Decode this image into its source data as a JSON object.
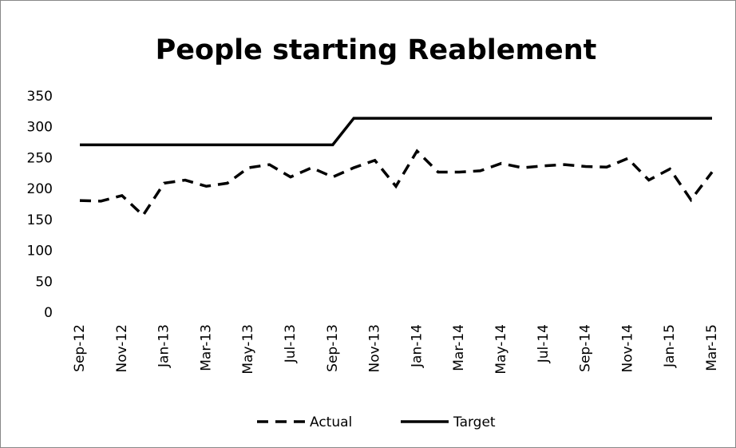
{
  "chart_data": {
    "type": "line",
    "title": "People starting Reablement",
    "categories": [
      "Sep-12",
      null,
      "Nov-12",
      null,
      "Jan-13",
      null,
      "Mar-13",
      null,
      "May-13",
      null,
      "Jul-13",
      null,
      "Sep-13",
      null,
      "Nov-13",
      null,
      "Jan-14",
      null,
      "Mar-14",
      null,
      "May-14",
      null,
      "Jul-14",
      null,
      "Sep-14",
      null,
      "Nov-14",
      null,
      "Jan-15",
      null,
      "Mar-15"
    ],
    "series": [
      {
        "name": "Actual",
        "color": "#000000",
        "dash": true,
        "values": [
          182,
          181,
          190,
          158,
          210,
          215,
          205,
          210,
          235,
          240,
          220,
          235,
          220,
          235,
          247,
          205,
          262,
          228,
          228,
          230,
          242,
          235,
          238,
          240,
          237,
          236,
          250,
          215,
          233,
          183,
          228
        ]
      },
      {
        "name": "Target",
        "color": "#000000",
        "dash": false,
        "values": [
          272,
          272,
          272,
          272,
          272,
          272,
          272,
          272,
          272,
          272,
          272,
          272,
          272,
          315,
          315,
          315,
          315,
          315,
          315,
          315,
          315,
          315,
          315,
          315,
          315,
          315,
          315,
          315,
          315,
          315,
          315
        ]
      }
    ],
    "ylim": [
      0,
      350
    ],
    "yticks": [
      0,
      50,
      100,
      150,
      200,
      250,
      300,
      350
    ],
    "grid": false,
    "legend": "bottom"
  }
}
